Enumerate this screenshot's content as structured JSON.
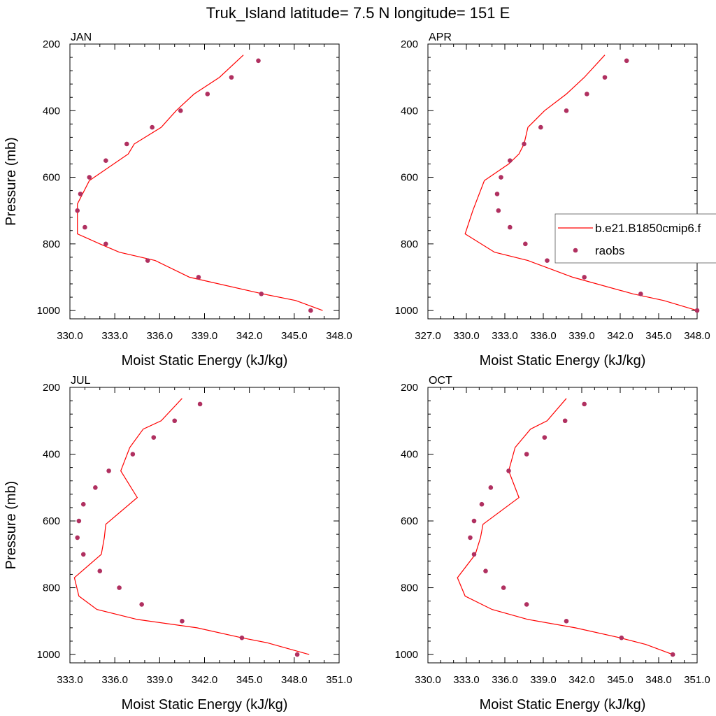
{
  "figure": {
    "title": "Truk_Island  latitude= 7.5 N longitude= 151 E"
  },
  "colors": {
    "model_line": "#ff0000",
    "obs_marker": "#b03060"
  },
  "legend": {
    "placement": "right of APR panel",
    "entries": [
      "b.e21.B1850cmip6.f",
      "raobs"
    ]
  },
  "chart_data": [
    {
      "type": "line",
      "panel_label": "JAN",
      "xlabel": "Moist Static Energy (kJ/kg)",
      "ylabel": "Pressure (mb)",
      "xlim": [
        330,
        348
      ],
      "ylim": [
        1025,
        200
      ],
      "y_reversed": true,
      "xticks": [
        330,
        333,
        336,
        339,
        342,
        345,
        348
      ],
      "xtick_labels": [
        "330.0",
        "333.0",
        "336.0",
        "339.0",
        "342.0",
        "345.0",
        "348.0"
      ],
      "yticks": [
        200,
        400,
        600,
        800,
        1000
      ],
      "ytick_labels": [
        "200",
        "400",
        "600",
        "800",
        "1000"
      ],
      "series": [
        {
          "name": "b.e21.B1850cmip6.f",
          "kind": "line",
          "x": [
            341.6,
            340.0,
            338.3,
            337.1,
            336.1,
            334.3,
            333.9,
            331.3,
            330.5,
            330.5,
            332.0,
            333.3,
            335.7,
            338.0,
            342.9,
            345.1,
            346.9
          ],
          "y": [
            233,
            300,
            350,
            400,
            450,
            500,
            530,
            610,
            680,
            770,
            800,
            825,
            850,
            900,
            950,
            970,
            1000
          ]
        },
        {
          "name": "raobs",
          "kind": "scatter",
          "x": [
            342.6,
            340.8,
            339.2,
            337.4,
            335.5,
            333.8,
            332.4,
            331.3,
            330.7,
            330.5,
            331.0,
            332.4,
            335.2,
            338.6,
            342.8,
            346.1
          ],
          "y": [
            250,
            300,
            350,
            400,
            450,
            500,
            550,
            600,
            650,
            700,
            750,
            800,
            850,
            900,
            950,
            1000
          ]
        }
      ]
    },
    {
      "type": "line",
      "panel_label": "APR",
      "xlabel": "Moist Static Energy (kJ/kg)",
      "ylabel": "",
      "xlim": [
        327,
        348
      ],
      "ylim": [
        1025,
        200
      ],
      "y_reversed": true,
      "xticks": [
        327,
        330,
        333,
        336,
        339,
        342,
        345,
        348
      ],
      "xtick_labels": [
        "327.0",
        "330.0",
        "333.0",
        "336.0",
        "339.0",
        "342.0",
        "345.0",
        "348.0"
      ],
      "yticks": [
        200,
        400,
        600,
        800,
        1000
      ],
      "ytick_labels": [
        "200",
        "400",
        "600",
        "800",
        "1000"
      ],
      "series": [
        {
          "name": "b.e21.B1850cmip6.f",
          "kind": "line",
          "x": [
            340.8,
            339.2,
            337.8,
            336.1,
            334.8,
            334.5,
            334.1,
            333.3,
            331.4,
            330.5,
            329.9,
            332.2,
            334.8,
            338.3,
            343.0,
            345.4,
            348.0
          ],
          "y": [
            233,
            300,
            350,
            400,
            450,
            500,
            530,
            560,
            610,
            700,
            770,
            825,
            850,
            900,
            950,
            970,
            1000
          ]
        },
        {
          "name": "raobs",
          "kind": "scatter",
          "x": [
            342.5,
            340.8,
            339.4,
            337.8,
            335.8,
            334.5,
            333.4,
            332.7,
            332.4,
            332.5,
            333.4,
            334.6,
            336.3,
            339.2,
            343.6,
            348.0
          ],
          "y": [
            250,
            300,
            350,
            400,
            450,
            500,
            550,
            600,
            650,
            700,
            750,
            800,
            850,
            900,
            950,
            1000
          ]
        }
      ]
    },
    {
      "type": "line",
      "panel_label": "JUL",
      "xlabel": "Moist Static Energy (kJ/kg)",
      "ylabel": "Pressure (mb)",
      "xlim": [
        333,
        351
      ],
      "ylim": [
        1025,
        200
      ],
      "y_reversed": true,
      "xticks": [
        333,
        336,
        339,
        342,
        345,
        348,
        351
      ],
      "xtick_labels": [
        "333.0",
        "336.0",
        "339.0",
        "342.0",
        "345.0",
        "348.0",
        "351.0"
      ],
      "yticks": [
        200,
        400,
        600,
        800,
        1000
      ],
      "ytick_labels": [
        "200",
        "400",
        "600",
        "800",
        "1000"
      ],
      "series": [
        {
          "name": "b.e21.B1850cmip6.f",
          "kind": "line",
          "x": [
            340.5,
            339.1,
            337.9,
            337.0,
            336.4,
            337.5,
            335.4,
            335.3,
            335.1,
            333.3,
            333.6,
            334.8,
            337.5,
            341.5,
            344.5,
            346.2,
            349.0
          ],
          "y": [
            233,
            300,
            325,
            380,
            450,
            530,
            610,
            650,
            700,
            770,
            825,
            865,
            895,
            920,
            950,
            965,
            1000
          ]
        },
        {
          "name": "raobs",
          "kind": "scatter",
          "x": [
            341.7,
            340.0,
            338.6,
            337.2,
            335.6,
            334.7,
            333.9,
            333.6,
            333.5,
            333.9,
            335.0,
            336.3,
            337.8,
            340.5,
            344.5,
            348.2
          ],
          "y": [
            250,
            300,
            350,
            400,
            450,
            500,
            550,
            600,
            650,
            700,
            750,
            800,
            850,
            900,
            950,
            1000
          ]
        }
      ]
    },
    {
      "type": "line",
      "panel_label": "OCT",
      "xlabel": "Moist Static Energy (kJ/kg)",
      "ylabel": "",
      "xlim": [
        330,
        351
      ],
      "ylim": [
        1025,
        200
      ],
      "y_reversed": true,
      "xticks": [
        330,
        333,
        336,
        339,
        342,
        345,
        348,
        351
      ],
      "xtick_labels": [
        "330.0",
        "333.0",
        "336.0",
        "339.0",
        "342.0",
        "345.0",
        "348.0",
        "351.0"
      ],
      "yticks": [
        200,
        400,
        600,
        800,
        1000
      ],
      "ytick_labels": [
        "200",
        "400",
        "600",
        "800",
        "1000"
      ],
      "series": [
        {
          "name": "b.e21.B1850cmip6.f",
          "kind": "line",
          "x": [
            340.8,
            339.3,
            338.0,
            336.8,
            336.3,
            337.1,
            334.3,
            334.1,
            333.7,
            332.3,
            332.9,
            335.0,
            337.8,
            341.5,
            345.0,
            347.0,
            349.1
          ],
          "y": [
            233,
            300,
            325,
            380,
            450,
            530,
            610,
            650,
            700,
            770,
            825,
            865,
            895,
            920,
            950,
            970,
            1000
          ]
        },
        {
          "name": "raobs",
          "kind": "scatter",
          "x": [
            342.2,
            340.7,
            339.1,
            337.7,
            336.3,
            334.9,
            334.2,
            333.6,
            333.3,
            333.6,
            334.5,
            335.9,
            337.7,
            340.8,
            345.1,
            349.1
          ],
          "y": [
            250,
            300,
            350,
            400,
            450,
            500,
            550,
            600,
            650,
            700,
            750,
            800,
            850,
            900,
            950,
            1000
          ]
        }
      ]
    }
  ]
}
